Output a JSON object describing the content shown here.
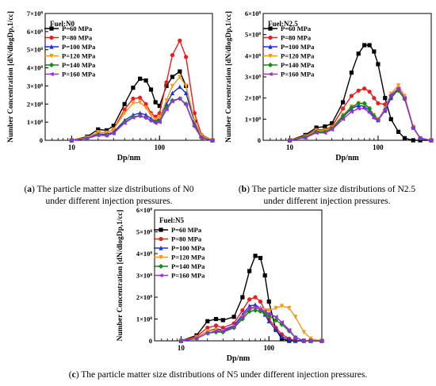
{
  "colors": {
    "P=60 MPa": "#000000",
    "P=80 MPa": "#ee1c1c",
    "P=100 MPa": "#1f2fd8",
    "P=120 MPa": "#f59a1b",
    "P=140 MPa": "#138a13",
    "P=160 MPa": "#9a2de0"
  },
  "captions": {
    "a": {
      "label": "a",
      "text1": "The particle matter size distributions of N0",
      "text2": "under different injection pressures."
    },
    "b": {
      "label": "b",
      "text1": "The particle matter size distributions of N2.5",
      "text2": "under different injection pressures."
    },
    "c": {
      "label": "c",
      "text1": "The particle matter size distributions of N5 under different injection pressures."
    }
  },
  "chart_data": [
    {
      "id": "N0",
      "type": "line",
      "fuel_label": "Fuel:N0",
      "xlabel": "Dp/nm",
      "ylabel": "Number Concentration [dN/dlogDp,1/cc]",
      "x_scale": "log",
      "xlim": [
        5,
        400
      ],
      "ylim": [
        0,
        700000000
      ],
      "x_ticks": [
        10,
        100
      ],
      "y_ticks": [
        0,
        100000000,
        200000000,
        300000000,
        400000000,
        500000000,
        600000000,
        700000000
      ],
      "y_tick_labels": [
        "0",
        "1×10⁸",
        "2×10⁸",
        "3×10⁸",
        "4×10⁸",
        "5×10⁸",
        "6×10⁸",
        "7×10⁸"
      ],
      "legend_position": "top-left",
      "series": [
        {
          "name": "P=60 MPa",
          "x": [
            10,
            15,
            20,
            25,
            30,
            40,
            50,
            60,
            70,
            80,
            90,
            100,
            120,
            140,
            170,
            200,
            250,
            300,
            400
          ],
          "y": [
            0,
            20000000,
            60000000,
            55000000,
            80000000,
            200000000,
            290000000,
            340000000,
            330000000,
            280000000,
            210000000,
            190000000,
            300000000,
            350000000,
            380000000,
            300000000,
            100000000,
            20000000,
            0
          ]
        },
        {
          "name": "P=80 MPa",
          "x": [
            10,
            15,
            20,
            25,
            30,
            40,
            50,
            60,
            70,
            80,
            90,
            100,
            120,
            140,
            170,
            200,
            250,
            300,
            400
          ],
          "y": [
            0,
            15000000,
            45000000,
            40000000,
            60000000,
            170000000,
            230000000,
            235000000,
            200000000,
            150000000,
            130000000,
            150000000,
            320000000,
            470000000,
            550000000,
            460000000,
            150000000,
            30000000,
            0
          ]
        },
        {
          "name": "P=100 MPa",
          "x": [
            10,
            15,
            20,
            25,
            30,
            40,
            50,
            60,
            70,
            80,
            90,
            100,
            120,
            140,
            170,
            200,
            250,
            300,
            400
          ],
          "y": [
            0,
            12000000,
            35000000,
            32000000,
            45000000,
            110000000,
            140000000,
            150000000,
            140000000,
            120000000,
            105000000,
            120000000,
            200000000,
            260000000,
            295000000,
            260000000,
            100000000,
            20000000,
            0
          ]
        },
        {
          "name": "P=120 MPa",
          "x": [
            10,
            15,
            20,
            25,
            30,
            40,
            50,
            60,
            70,
            80,
            90,
            100,
            120,
            140,
            170,
            200,
            250,
            300,
            400
          ],
          "y": [
            0,
            15000000,
            45000000,
            42000000,
            60000000,
            150000000,
            205000000,
            210000000,
            180000000,
            140000000,
            115000000,
            125000000,
            220000000,
            300000000,
            350000000,
            300000000,
            110000000,
            25000000,
            0
          ]
        },
        {
          "name": "P=140 MPa",
          "x": [
            10,
            15,
            20,
            25,
            30,
            40,
            50,
            60,
            70,
            80,
            90,
            100,
            120,
            140,
            170,
            200,
            250,
            300,
            400
          ],
          "y": [
            0,
            10000000,
            30000000,
            28000000,
            40000000,
            100000000,
            130000000,
            135000000,
            125000000,
            110000000,
            100000000,
            105000000,
            180000000,
            220000000,
            230000000,
            200000000,
            80000000,
            15000000,
            0
          ]
        },
        {
          "name": "P=160 MPa",
          "x": [
            10,
            15,
            20,
            25,
            30,
            40,
            50,
            60,
            70,
            80,
            90,
            100,
            120,
            140,
            170,
            200,
            250,
            300,
            400
          ],
          "y": [
            0,
            10000000,
            28000000,
            26000000,
            38000000,
            95000000,
            125000000,
            135000000,
            125000000,
            110000000,
            95000000,
            100000000,
            170000000,
            215000000,
            230000000,
            195000000,
            75000000,
            12000000,
            0
          ]
        }
      ]
    },
    {
      "id": "N2.5",
      "type": "line",
      "fuel_label": "Fuel:N2.5",
      "xlabel": "Dp/nm",
      "ylabel": "Number Concentration [dN/dlogDp,1/cc]",
      "x_scale": "log",
      "xlim": [
        5,
        400
      ],
      "ylim": [
        0,
        600000000
      ],
      "x_ticks": [
        10,
        100
      ],
      "y_ticks": [
        0,
        100000000,
        200000000,
        300000000,
        400000000,
        500000000,
        600000000
      ],
      "y_tick_labels": [
        "0",
        "1×10⁸",
        "2×10⁸",
        "3×10⁸",
        "4×10⁸",
        "5×10⁸",
        "6×10⁸"
      ],
      "legend_position": "top-left",
      "series": [
        {
          "name": "P=60 MPa",
          "x": [
            10,
            15,
            20,
            25,
            30,
            40,
            50,
            60,
            70,
            80,
            90,
            100,
            120,
            140,
            170,
            200,
            250,
            300,
            400
          ],
          "y": [
            0,
            25000000,
            60000000,
            65000000,
            80000000,
            180000000,
            320000000,
            410000000,
            450000000,
            450000000,
            420000000,
            360000000,
            200000000,
            100000000,
            40000000,
            10000000,
            0,
            0,
            0
          ]
        },
        {
          "name": "P=80 MPa",
          "x": [
            10,
            15,
            20,
            25,
            30,
            40,
            50,
            60,
            70,
            80,
            90,
            100,
            120,
            140,
            170,
            200,
            250,
            300,
            400
          ],
          "y": [
            0,
            20000000,
            50000000,
            50000000,
            65000000,
            150000000,
            210000000,
            235000000,
            245000000,
            230000000,
            200000000,
            175000000,
            170000000,
            200000000,
            245000000,
            200000000,
            60000000,
            10000000,
            0
          ]
        },
        {
          "name": "P=100 MPa",
          "x": [
            10,
            15,
            20,
            25,
            30,
            40,
            50,
            60,
            70,
            80,
            90,
            100,
            120,
            140,
            170,
            200,
            250,
            300,
            400
          ],
          "y": [
            0,
            15000000,
            40000000,
            42000000,
            55000000,
            110000000,
            150000000,
            165000000,
            160000000,
            140000000,
            110000000,
            95000000,
            140000000,
            200000000,
            240000000,
            200000000,
            60000000,
            10000000,
            0
          ]
        },
        {
          "name": "P=120 MPa",
          "x": [
            10,
            15,
            20,
            25,
            30,
            40,
            50,
            60,
            70,
            80,
            90,
            100,
            120,
            140,
            170,
            200,
            250,
            300,
            400
          ],
          "y": [
            0,
            18000000,
            45000000,
            45000000,
            60000000,
            120000000,
            160000000,
            175000000,
            170000000,
            150000000,
            120000000,
            100000000,
            150000000,
            220000000,
            260000000,
            210000000,
            65000000,
            10000000,
            0
          ]
        },
        {
          "name": "P=140 MPa",
          "x": [
            10,
            15,
            20,
            25,
            30,
            40,
            50,
            60,
            70,
            80,
            90,
            100,
            120,
            140,
            170,
            200,
            250,
            300,
            400
          ],
          "y": [
            0,
            15000000,
            40000000,
            40000000,
            55000000,
            115000000,
            155000000,
            175000000,
            175000000,
            150000000,
            115000000,
            95000000,
            145000000,
            210000000,
            235000000,
            195000000,
            60000000,
            10000000,
            0
          ]
        },
        {
          "name": "P=160 MPa",
          "x": [
            10,
            15,
            20,
            25,
            30,
            40,
            50,
            60,
            70,
            80,
            90,
            100,
            120,
            140,
            170,
            200,
            250,
            300,
            400
          ],
          "y": [
            0,
            12000000,
            35000000,
            35000000,
            50000000,
            100000000,
            135000000,
            150000000,
            150000000,
            130000000,
            105000000,
            95000000,
            145000000,
            215000000,
            245000000,
            200000000,
            60000000,
            10000000,
            0
          ]
        }
      ]
    },
    {
      "id": "N5",
      "type": "line",
      "fuel_label": "Fuel:N5",
      "xlabel": "Dp/nm",
      "ylabel": "Number Concentration [dN/dlogDp,1/cc]",
      "x_scale": "log",
      "xlim": [
        5,
        400
      ],
      "ylim": [
        0,
        600000000
      ],
      "x_ticks": [
        10,
        100
      ],
      "y_ticks": [
        0,
        100000000,
        200000000,
        300000000,
        400000000,
        500000000,
        600000000
      ],
      "y_tick_labels": [
        "0",
        "1×10⁸",
        "2×10⁸",
        "3×10⁸",
        "4×10⁸",
        "5×10⁸",
        "6×10⁸"
      ],
      "legend_position": "top-left",
      "series": [
        {
          "name": "P=60 MPa",
          "x": [
            10,
            15,
            20,
            25,
            30,
            40,
            50,
            60,
            70,
            80,
            90,
            100,
            120,
            140,
            170,
            200,
            250,
            300,
            400
          ],
          "y": [
            0,
            25000000,
            90000000,
            100000000,
            95000000,
            110000000,
            200000000,
            320000000,
            390000000,
            380000000,
            300000000,
            180000000,
            50000000,
            10000000,
            0,
            0,
            0,
            0,
            0
          ]
        },
        {
          "name": "P=80 MPa",
          "x": [
            10,
            15,
            20,
            25,
            30,
            40,
            50,
            60,
            70,
            80,
            90,
            100,
            120,
            140,
            170,
            200,
            250,
            300,
            400
          ],
          "y": [
            0,
            20000000,
            60000000,
            70000000,
            60000000,
            80000000,
            140000000,
            190000000,
            200000000,
            180000000,
            140000000,
            100000000,
            60000000,
            30000000,
            10000000,
            0,
            0,
            0,
            0
          ]
        },
        {
          "name": "P=100 MPa",
          "x": [
            10,
            15,
            20,
            25,
            30,
            40,
            50,
            60,
            70,
            80,
            90,
            100,
            120,
            140,
            170,
            200,
            250,
            300,
            400
          ],
          "y": [
            0,
            15000000,
            45000000,
            55000000,
            50000000,
            70000000,
            120000000,
            160000000,
            165000000,
            150000000,
            120000000,
            90000000,
            50000000,
            20000000,
            5000000,
            0,
            0,
            0,
            0
          ]
        },
        {
          "name": "P=120 MPa",
          "x": [
            10,
            15,
            20,
            25,
            30,
            40,
            50,
            60,
            70,
            80,
            90,
            100,
            120,
            140,
            170,
            200,
            250,
            300,
            400
          ],
          "y": [
            0,
            15000000,
            45000000,
            50000000,
            45000000,
            65000000,
            110000000,
            145000000,
            150000000,
            145000000,
            140000000,
            140000000,
            150000000,
            160000000,
            150000000,
            110000000,
            40000000,
            10000000,
            0
          ]
        },
        {
          "name": "P=140 MPa",
          "x": [
            10,
            15,
            20,
            25,
            30,
            40,
            50,
            60,
            70,
            80,
            90,
            100,
            120,
            140,
            170,
            200,
            250,
            300,
            400
          ],
          "y": [
            0,
            10000000,
            35000000,
            40000000,
            40000000,
            60000000,
            100000000,
            135000000,
            140000000,
            135000000,
            125000000,
            115000000,
            95000000,
            75000000,
            45000000,
            15000000,
            0,
            0,
            0
          ]
        },
        {
          "name": "P=160 MPa",
          "x": [
            10,
            15,
            20,
            25,
            30,
            40,
            50,
            60,
            70,
            80,
            90,
            100,
            120,
            140,
            170,
            200,
            250,
            300,
            400
          ],
          "y": [
            0,
            12000000,
            35000000,
            45000000,
            45000000,
            65000000,
            110000000,
            150000000,
            155000000,
            145000000,
            135000000,
            125000000,
            110000000,
            85000000,
            50000000,
            15000000,
            0,
            0,
            0
          ]
        }
      ]
    }
  ]
}
